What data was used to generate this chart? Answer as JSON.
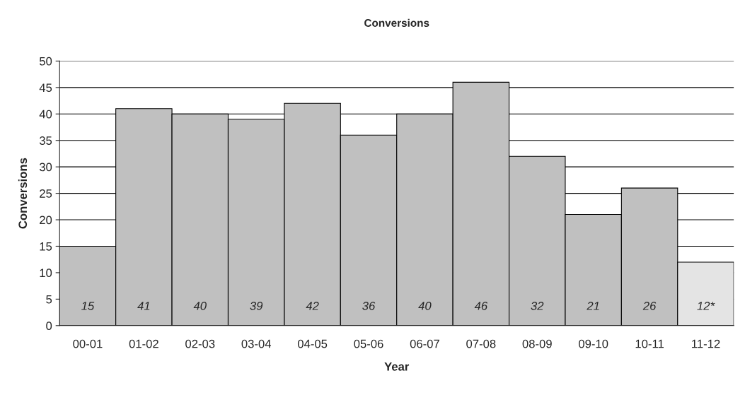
{
  "chart_data": {
    "type": "bar",
    "title": "Conversions",
    "xlabel": "Year",
    "ylabel": "Conversions",
    "categories": [
      "00-01",
      "01-02",
      "02-03",
      "03-04",
      "04-05",
      "05-06",
      "06-07",
      "07-08",
      "08-09",
      "09-10",
      "10-11",
      "11-12"
    ],
    "values": [
      15,
      41,
      40,
      39,
      42,
      36,
      40,
      46,
      32,
      21,
      26,
      12
    ],
    "colors": [
      "#c0c0c0",
      "#c0c0c0",
      "#c0c0c0",
      "#c0c0c0",
      "#c0c0c0",
      "#c0c0c0",
      "#c0c0c0",
      "#c0c0c0",
      "#c0c0c0",
      "#c0c0c0",
      "#c0c0c0",
      "#e4e4e4"
    ],
    "value_labels": [
      "15",
      "41",
      "40",
      "39",
      "42",
      "36",
      "40",
      "46",
      "32",
      "21",
      "26",
      "12*"
    ],
    "ylim": [
      0,
      50
    ],
    "yticks": [
      0,
      5,
      10,
      15,
      20,
      25,
      30,
      35,
      40,
      45,
      50
    ],
    "grid": "y",
    "legend": false
  }
}
